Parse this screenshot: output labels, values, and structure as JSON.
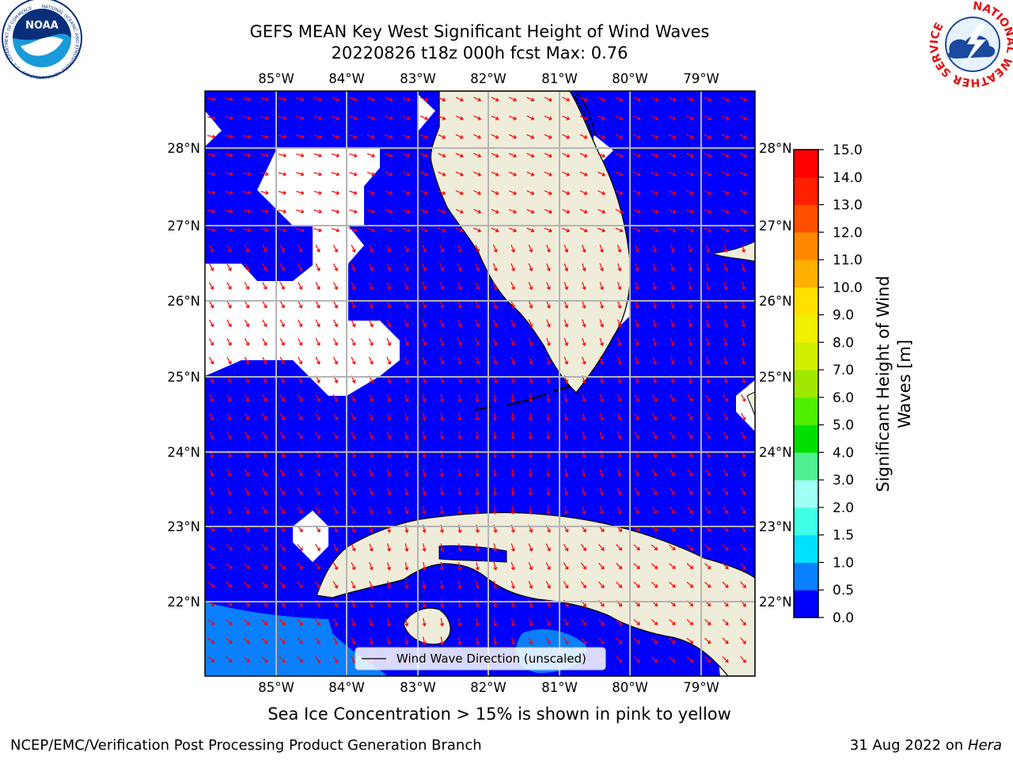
{
  "header": {
    "title_line1": "GEFS MEAN Key West Significant Height of Wind Waves",
    "title_line2": "20220826 t18z 000h fcst   Max: 0.76"
  },
  "logos": {
    "left": {
      "text": "NOAA",
      "ring_text": "NATIONAL OCEANIC AND ATMOSPHERIC ADMINISTRATION · U.S. DEPARTMENT OF COMMERCE"
    },
    "right": {
      "ring_text": "NATIONAL WEATHER SERVICE"
    }
  },
  "map": {
    "lon_labels": [
      "85°W",
      "84°W",
      "83°W",
      "82°W",
      "81°W",
      "80°W",
      "79°W"
    ],
    "lat_labels": [
      "28°N",
      "27°N",
      "26°N",
      "25°N",
      "24°N",
      "23°N",
      "22°N"
    ],
    "legend_label": "Wind Wave Direction (unscaled)",
    "colors": {
      "ocean": "#0000ff",
      "land": "#efedda",
      "arrow": "#ff0000",
      "band_05": "#0a80ff"
    }
  },
  "colorbar": {
    "label_line1": "Significant Height of Wind",
    "label_line2": "Waves [m]",
    "ticks": [
      "0.0",
      "0.5",
      "1.0",
      "1.5",
      "2.0",
      "3.0",
      "4.0",
      "5.0",
      "6.0",
      "7.0",
      "8.0",
      "9.0",
      "10.0",
      "11.0",
      "12.0",
      "13.0",
      "14.0",
      "15.0"
    ],
    "colors": [
      "#0000ff",
      "#0a80ff",
      "#00e0ff",
      "#40ffe8",
      "#a0fff4",
      "#50f090",
      "#00e000",
      "#50f000",
      "#a0e800",
      "#d0f000",
      "#f0f000",
      "#ffe000",
      "#ffb000",
      "#ff8800",
      "#ff5000",
      "#ff2000",
      "#ff0000"
    ]
  },
  "footer": {
    "ice_note": "Sea Ice Concentration > 15% is shown in pink to yellow",
    "left": "NCEP/EMC/Verification Post Processing Product Generation Branch",
    "right_date": "31 Aug 2022 on",
    "right_host": "Hera"
  }
}
